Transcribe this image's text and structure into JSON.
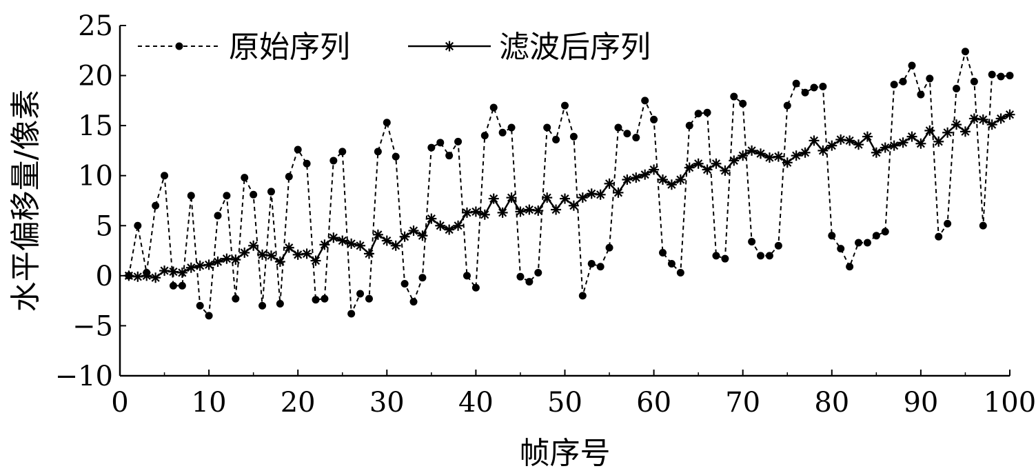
{
  "chart_data": {
    "type": "line",
    "xlabel": "帧序号",
    "ylabel": "水平偏移量/像素",
    "xlim": [
      0,
      100
    ],
    "ylim": [
      -10,
      25
    ],
    "x_ticks": [
      "0",
      "10",
      "20",
      "30",
      "40",
      "50",
      "60",
      "70",
      "80",
      "90",
      "100"
    ],
    "y_ticks": [
      "-10",
      "-5",
      "0",
      "5",
      "10",
      "15",
      "20",
      "25"
    ],
    "grid": false,
    "legend_position": "top-left",
    "x": [
      1,
      2,
      3,
      4,
      5,
      6,
      7,
      8,
      9,
      10,
      11,
      12,
      13,
      14,
      15,
      16,
      17,
      18,
      19,
      20,
      21,
      22,
      23,
      24,
      25,
      26,
      27,
      28,
      29,
      30,
      31,
      32,
      33,
      34,
      35,
      36,
      37,
      38,
      39,
      40,
      41,
      42,
      43,
      44,
      45,
      46,
      47,
      48,
      49,
      50,
      51,
      52,
      53,
      54,
      55,
      56,
      57,
      58,
      59,
      60,
      61,
      62,
      63,
      64,
      65,
      66,
      67,
      68,
      69,
      70,
      71,
      72,
      73,
      74,
      75,
      76,
      77,
      78,
      79,
      80,
      81,
      82,
      83,
      84,
      85,
      86,
      87,
      88,
      89,
      90,
      91,
      92,
      93,
      94,
      95,
      96,
      97,
      98,
      99,
      100
    ],
    "series": [
      {
        "name": "原始序列",
        "style": "dashed-circle",
        "color": "#000000",
        "values": [
          0,
          5,
          0.3,
          7,
          10,
          -1,
          -1,
          8,
          -3,
          -4,
          6,
          8,
          -2.3,
          9.8,
          8.1,
          -3,
          8.4,
          -2.8,
          9.9,
          12.6,
          11.2,
          -2.4,
          -2.3,
          11.5,
          12.4,
          -3.8,
          -1.8,
          -2.3,
          12.4,
          15.3,
          11.9,
          -0.8,
          -2.6,
          -0.2,
          12.8,
          13.3,
          12,
          13.4,
          0,
          -1.2,
          14,
          16.8,
          14.3,
          14.8,
          -0.1,
          -0.6,
          0.3,
          14.8,
          13.6,
          17,
          13.9,
          -2,
          1.2,
          0.9,
          2.8,
          14.8,
          14.2,
          13.8,
          17.5,
          15.6,
          2.3,
          1.2,
          0.3,
          15,
          16.2,
          16.3,
          2,
          1.7,
          17.9,
          17.2,
          3.4,
          2,
          2,
          3,
          17,
          19.2,
          18.3,
          18.8,
          18.9,
          4,
          2.7,
          0.9,
          3.3,
          3.3,
          4,
          4.4,
          19.1,
          19.4,
          21,
          18.1,
          19.7,
          3.9,
          5.2,
          18.7,
          22.4,
          19.4,
          5,
          20.1,
          19.9,
          20
        ]
      },
      {
        "name": "滤波后序列",
        "style": "solid-star",
        "color": "#000000",
        "values": [
          0,
          -0.1,
          0,
          -0.2,
          0.5,
          0.4,
          0.3,
          0.8,
          1,
          1.1,
          1.4,
          1.7,
          1.6,
          2.3,
          3,
          2.1,
          2,
          1.4,
          2.8,
          2.1,
          2.2,
          1.5,
          3.1,
          3.8,
          3.5,
          3.2,
          3,
          2.2,
          4.1,
          3.5,
          3,
          3.9,
          4.5,
          4,
          5.7,
          5,
          4.6,
          5,
          6.3,
          6.4,
          6.1,
          7.7,
          6.3,
          7.8,
          6.4,
          6.6,
          6.5,
          7.8,
          6.6,
          7.7,
          7,
          7.8,
          8.2,
          8.1,
          9.2,
          8.3,
          9.6,
          9.8,
          10.1,
          10.6,
          9.6,
          9.1,
          9.6,
          10.8,
          11.2,
          10.6,
          11.2,
          10.5,
          11.5,
          12,
          12.5,
          12.2,
          11.8,
          11.9,
          11.3,
          12,
          12.3,
          13.5,
          12.5,
          13,
          13.6,
          13.5,
          13.1,
          13.9,
          12.3,
          12.8,
          13,
          13.3,
          13.9,
          13.2,
          14.5,
          13.4,
          14.3,
          15.1,
          14.4,
          15.7,
          15.6,
          15.1,
          15.7,
          16.1
        ]
      }
    ]
  }
}
